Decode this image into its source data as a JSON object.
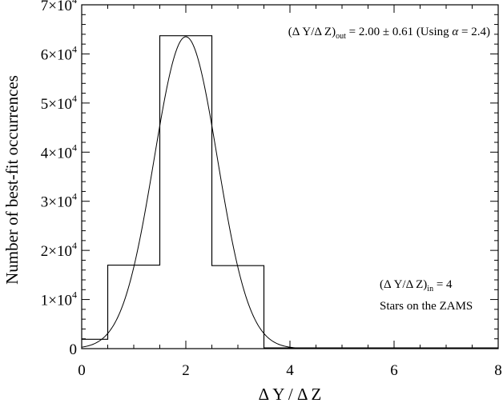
{
  "chart_data": {
    "type": "bar",
    "title": "",
    "xlabel": "Δ Y / Δ Z",
    "ylabel": "Number of best-fit occurrences",
    "xlim": [
      0,
      8
    ],
    "ylim": [
      0,
      70000
    ],
    "xticks": [
      0,
      2,
      4,
      6,
      8
    ],
    "xtick_labels": [
      "0",
      "2",
      "4",
      "6",
      "8"
    ],
    "yticks": [
      0,
      10000,
      20000,
      30000,
      40000,
      50000,
      60000,
      70000
    ],
    "ytick_labels": [
      {
        "mant": "0",
        "exp": ""
      },
      {
        "mant": "1×10",
        "exp": "4"
      },
      {
        "mant": "2×10",
        "exp": "4"
      },
      {
        "mant": "3×10",
        "exp": "4"
      },
      {
        "mant": "4×10",
        "exp": "4"
      },
      {
        "mant": "5×10",
        "exp": "4"
      },
      {
        "mant": "6×10",
        "exp": "4"
      },
      {
        "mant": "7×10",
        "exp": "4"
      }
    ],
    "grid": false,
    "series": [
      {
        "type": "histogram",
        "bin_edges": [
          0,
          0.5,
          1.5,
          2.5,
          3.5,
          8
        ],
        "counts": [
          1900,
          17000,
          63700,
          16900,
          150
        ]
      },
      {
        "type": "gaussian-fit",
        "mean": 2.0,
        "sigma": 0.61,
        "amplitude": 63500,
        "x_range": [
          0,
          5
        ]
      }
    ],
    "annotations": [
      {
        "id": "fit",
        "position": "top-right",
        "lhs": "(Δ Y/Δ Z)",
        "lhs_sub": "out",
        "rhs": " = 2.00 ± 0.61 (Using ",
        "alpha_symbol": "α",
        "alpha_rhs": " = 2.4)"
      },
      {
        "id": "input",
        "position": "bottom-right",
        "lhs": "(Δ Y/Δ Z)",
        "lhs_sub": "in",
        "rhs": " = 4",
        "line2": "Stars on the ZAMS"
      }
    ]
  }
}
